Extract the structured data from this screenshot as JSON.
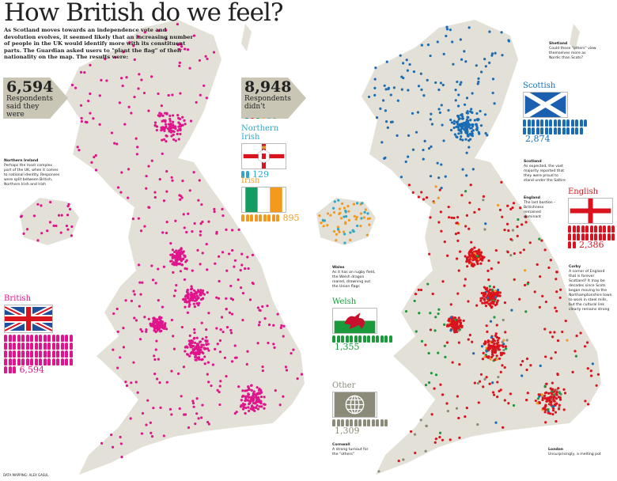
{
  "title": "How British do we feel?",
  "intro": "As Scotland moves towards an independence vote and devolution evolves, it seemed likely that an increasing number of people in the UK would identify more with its constituent parts. The Guardian asked users to \"plant the flag\" of their nationality on the map. The results were:",
  "british_box": {
    "count": "6,594",
    "text": "Respondents said they were British"
  },
  "didnt_box": {
    "count": "8,948",
    "text": "Respondents didn't",
    "dot_colors": [
      "#1a6db5",
      "#e0191f",
      "#1a9a3a",
      "#f4a020",
      "#3bb3e0",
      "#8c8a78"
    ]
  },
  "colors": {
    "british": "#e0148c",
    "scottish": "#1a6db5",
    "english": "#d9141e",
    "welsh": "#1a9a3a",
    "irish": "#f39a1e",
    "northern_irish": "#2fa8c8",
    "other": "#8c8a78",
    "land": "#e2e0d7"
  },
  "groups": [
    {
      "key": "british",
      "label": "British",
      "count": "6,594",
      "icons": 67,
      "flag": "union-jack"
    },
    {
      "key": "northern_irish",
      "label": "Northern Irish",
      "count": "129",
      "icons": 2,
      "flag": "ulster-banner"
    },
    {
      "key": "irish",
      "label": "Irish",
      "count": "895",
      "icons": 9,
      "flag": "irish-tricolour"
    },
    {
      "key": "scottish",
      "label": "Scottish",
      "count": "2,874",
      "icons": 29,
      "flag": "saltire"
    },
    {
      "key": "english",
      "label": "English",
      "count": "2,386",
      "icons": 24,
      "flag": "st-george-cross"
    },
    {
      "key": "welsh",
      "label": "Welsh",
      "count": "1,355",
      "icons": 14,
      "flag": "welsh-dragon"
    },
    {
      "key": "other",
      "label": "Other",
      "count": "1,309",
      "icons": 13,
      "flag": "globe"
    }
  ],
  "notes": {
    "northern_ireland": {
      "title": "Northern Ireland",
      "text": "Perhaps the most complex part of the UK, when it comes to national identity. Responses were split between British, Northern Irish and Irish"
    },
    "shetland": {
      "title": "Shetland",
      "text": "Could those \"others\" view themselves more as Nordic than Scots?"
    },
    "scotland": {
      "title": "Scotland",
      "text": "As expected, the vast majority reported that they were proud to stand under the Saltire"
    },
    "england": {
      "title": "England",
      "text": "The last bastion – Britishness remained dominant"
    },
    "corby": {
      "title": "Corby",
      "text": "A corner of England that is forever Scotland? It may be decades since Scots began moving to the Northamptonshire town to work in steel mills, but the cultural link clearly remains strong"
    },
    "wales": {
      "title": "Wales",
      "text": "As it has on rugby field, the Welsh dragon roared, drowning out the Union flags"
    },
    "cornwall": {
      "title": "Cornwall",
      "text": "A strong turnout for the \"others\""
    },
    "london": {
      "title": "London",
      "text": "Unsurprisingly, a melting pot"
    }
  },
  "credit": "DATA MAPPING: ALEX GASUL"
}
